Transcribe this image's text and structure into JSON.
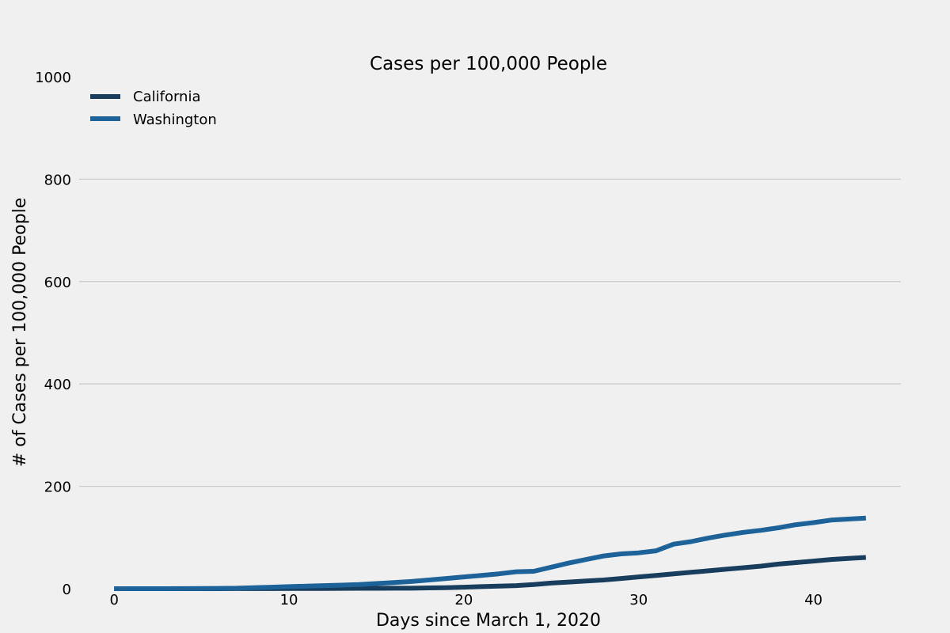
{
  "chart_data": {
    "type": "line",
    "title": "Cases per 100,000 People",
    "xlabel": "Days since March 1, 2020",
    "ylabel": "# of Cases per 100,000 People",
    "xlim": [
      -2,
      45
    ],
    "ylim": [
      0,
      1000
    ],
    "xticks": [
      0,
      10,
      20,
      30,
      40
    ],
    "yticks": [
      0,
      200,
      400,
      600,
      800,
      1000
    ],
    "grid": "horizontal",
    "legend_position": "top-left",
    "x": [
      0,
      1,
      2,
      3,
      4,
      5,
      6,
      7,
      8,
      9,
      10,
      11,
      12,
      13,
      14,
      15,
      16,
      17,
      18,
      19,
      20,
      21,
      22,
      23,
      24,
      25,
      26,
      27,
      28,
      29,
      30,
      31,
      32,
      33,
      34,
      35,
      36,
      37,
      38,
      39,
      40,
      41,
      42,
      43
    ],
    "series": [
      {
        "name": "California",
        "color": "#183d5d",
        "values": [
          0,
          0,
          0,
          0,
          0,
          0,
          0,
          0.1,
          0.1,
          0.2,
          0.3,
          0.4,
          0.5,
          0.6,
          0.7,
          0.8,
          0.9,
          1.0,
          1.5,
          2,
          3,
          4,
          5,
          6,
          8,
          11,
          13,
          15,
          17,
          20,
          23,
          26,
          29,
          32,
          35,
          38,
          41,
          44,
          48,
          51,
          54,
          57,
          59,
          61
        ]
      },
      {
        "name": "Washington",
        "color": "#1d6399",
        "values": [
          0,
          0,
          0,
          0,
          0.2,
          0.4,
          0.6,
          1,
          2,
          3,
          4,
          5,
          6,
          7,
          8,
          10,
          12,
          14,
          17,
          20,
          23,
          26,
          29,
          33,
          34,
          42,
          50,
          57,
          64,
          68,
          70,
          74,
          87,
          92,
          99,
          105,
          110,
          114,
          119,
          125,
          129,
          134,
          136,
          138
        ]
      }
    ]
  }
}
